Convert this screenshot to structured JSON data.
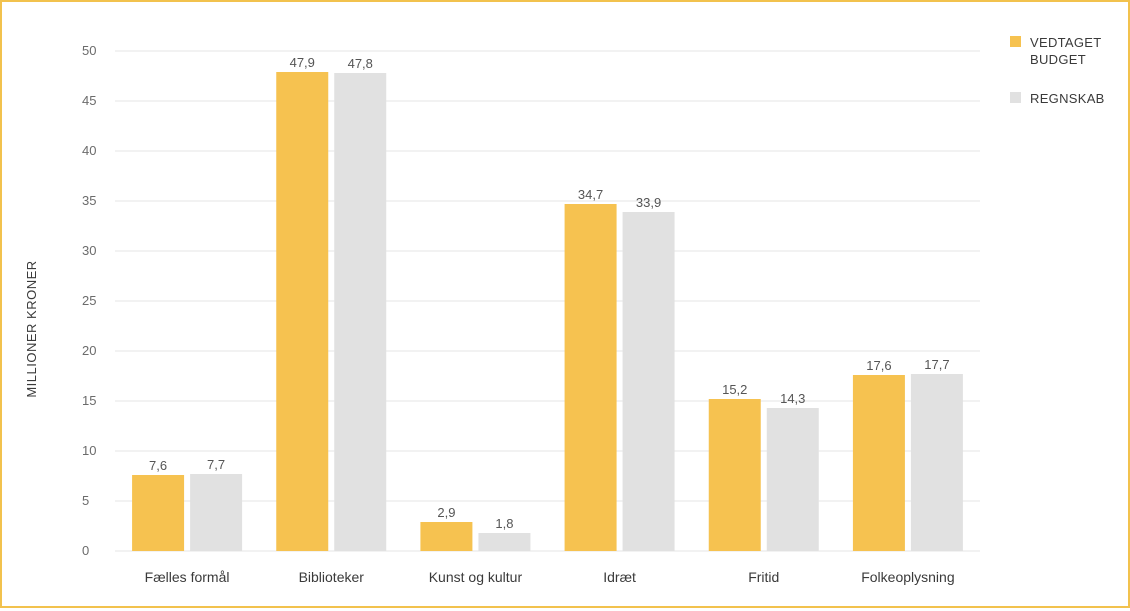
{
  "chart_data": {
    "type": "bar",
    "categories": [
      "Fælles formål",
      "Biblioteker",
      "Kunst og kultur",
      "Idræt",
      "Fritid",
      "Folkeoplysning"
    ],
    "series": [
      {
        "name": "VEDTAGET BUDGET",
        "color": "#f6c250",
        "values": [
          7.6,
          47.9,
          2.9,
          34.7,
          15.2,
          17.6
        ],
        "labels": [
          "7,6",
          "47,9",
          "2,9",
          "34,7",
          "15,2",
          "17,6"
        ]
      },
      {
        "name": "REGNSKAB",
        "color": "#e1e1e1",
        "values": [
          7.7,
          47.8,
          1.8,
          33.9,
          14.3,
          17.7
        ],
        "labels": [
          "7,7",
          "47,8",
          "1,8",
          "33,9",
          "14,3",
          "17,7"
        ]
      }
    ],
    "legend_lines": [
      [
        "VEDTAGET",
        "BUDGET"
      ],
      [
        "REGNSKAB"
      ]
    ],
    "ylabel": "MILLIONER KRONER",
    "xlabel": "",
    "ylim": [
      0,
      50
    ],
    "yticks": [
      0,
      5,
      10,
      15,
      20,
      25,
      30,
      35,
      40,
      45,
      50
    ],
    "grid": true,
    "legend_position": "top-right",
    "colors": {
      "frame": "#f2c24e",
      "grid": "#e6e6e6"
    }
  }
}
